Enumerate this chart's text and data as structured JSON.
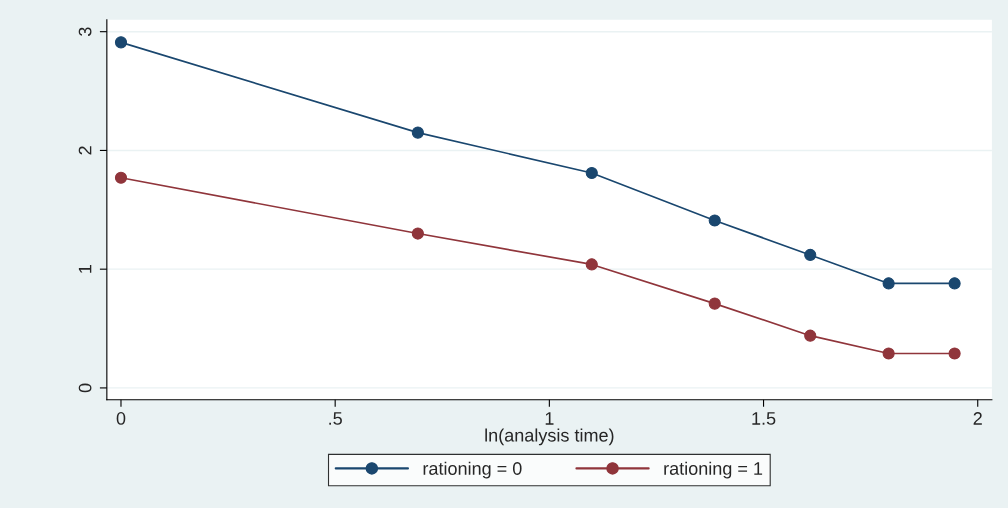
{
  "chart_data": {
    "type": "line",
    "xlabel": "ln(analysis time)",
    "x": [
      0,
      0.693,
      1.099,
      1.386,
      1.609,
      1.792,
      1.946
    ],
    "series": [
      {
        "name": "rationing = 0",
        "color": "#1a476f",
        "values": [
          2.91,
          2.15,
          1.81,
          1.41,
          1.12,
          0.88,
          0.88
        ]
      },
      {
        "name": "rationing = 1",
        "color": "#90353b",
        "values": [
          1.77,
          1.3,
          1.04,
          0.71,
          0.44,
          0.29,
          0.29
        ]
      }
    ],
    "xlim": [
      -0.033,
      2.033
    ],
    "ylim": [
      -0.1,
      3.1
    ],
    "xticks": [
      0,
      {
        "value": 0.5,
        "label": ".5"
      },
      1,
      1.5,
      2
    ],
    "yticks": [
      0,
      1,
      2,
      3
    ],
    "grid": "y",
    "legend": "bottom",
    "marker": "circle",
    "line_style": "solid"
  }
}
